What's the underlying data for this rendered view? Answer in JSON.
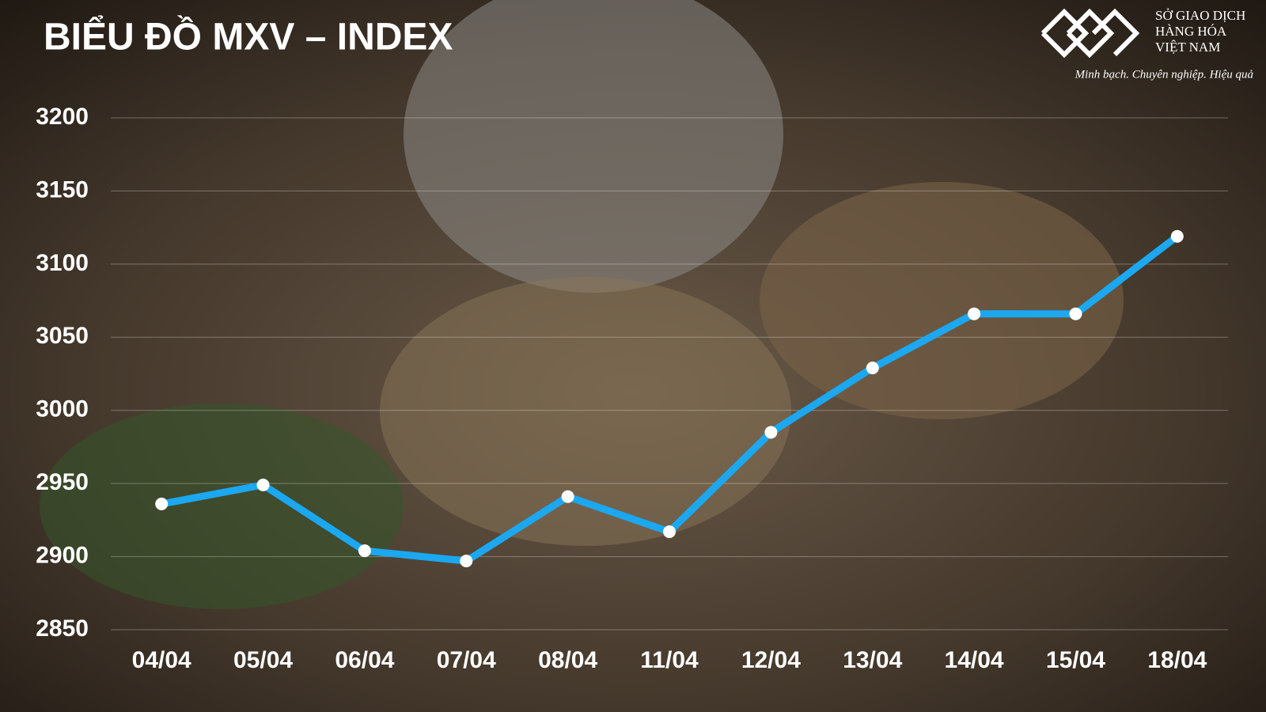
{
  "chart_data": {
    "type": "line",
    "title": "BIỂU ĐỒ MXV – INDEX",
    "categories": [
      "04/04",
      "05/04",
      "06/04",
      "07/04",
      "08/04",
      "11/04",
      "12/04",
      "13/04",
      "14/04",
      "15/04",
      "18/04"
    ],
    "series": [
      {
        "name": "MXV-Index",
        "color": "#1ba8f0",
        "values": [
          2936,
          2949,
          2904,
          2897,
          2941,
          2917,
          2985,
          3029,
          3066,
          3066,
          3119
        ]
      }
    ],
    "ylim": [
      2850,
      3200
    ],
    "yticks": [
      2850,
      2900,
      2950,
      3000,
      3050,
      3100,
      3150,
      3200
    ],
    "grid": true
  },
  "logo": {
    "lines": [
      "SỞ GIAO DỊCH",
      "HÀNG HÓA",
      "VIỆT NAM"
    ],
    "tagline": "Minh bạch. Chuyên nghiệp. Hiệu quả"
  }
}
